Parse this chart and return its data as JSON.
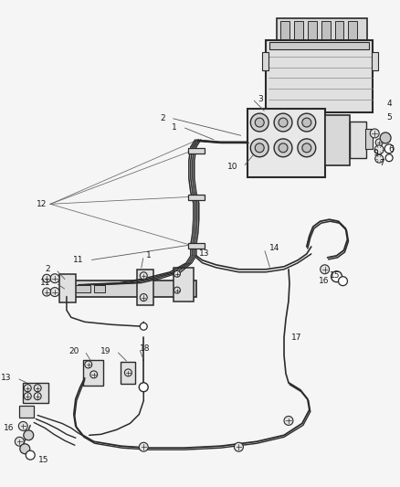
{
  "bg_color": "#f5f5f5",
  "line_color": "#2a2a2a",
  "label_color": "#1a1a1a",
  "fig_width": 4.38,
  "fig_height": 5.33,
  "dpi": 100
}
